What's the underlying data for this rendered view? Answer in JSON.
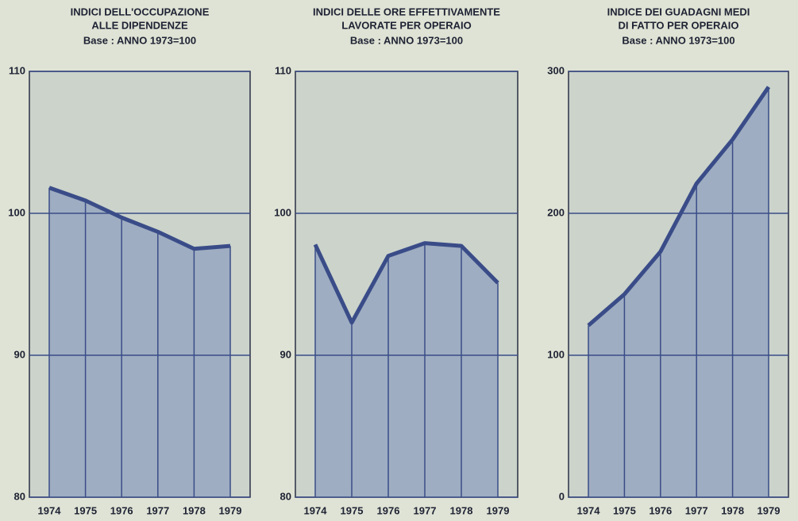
{
  "chart_data": [
    {
      "type": "area",
      "title": [
        "INDICI DELL'OCCUPAZIONE",
        "ALLE DIPENDENZE"
      ],
      "subtitle": "Base : ANNO 1973=100",
      "categories": [
        "1974",
        "1975",
        "1976",
        "1977",
        "1978",
        "1979"
      ],
      "values": [
        101.8,
        100.9,
        99.7,
        98.7,
        97.5,
        97.7
      ],
      "ylim": [
        80,
        110
      ],
      "yticks": [
        80,
        90,
        100,
        110
      ],
      "color": "#3a4c88",
      "fill": "#96a6bf",
      "grid": true
    },
    {
      "type": "area",
      "title": [
        "INDICI DELLE ORE EFFETTIVAMENTE",
        "LAVORATE PER OPERAIO"
      ],
      "subtitle": "Base : ANNO 1973=100",
      "categories": [
        "1974",
        "1975",
        "1976",
        "1977",
        "1978",
        "1979"
      ],
      "values": [
        97.8,
        92.3,
        97.0,
        97.9,
        97.7,
        95.1
      ],
      "ylim": [
        80,
        110
      ],
      "yticks": [
        80,
        90,
        100,
        110
      ],
      "color": "#3a4c88",
      "fill": "#96a6bf",
      "grid": true
    },
    {
      "type": "area",
      "title": [
        "INDICE DEI GUADAGNI MEDI",
        "DI FATTO PER OPERAIO"
      ],
      "subtitle": "Base : ANNO 1973=100",
      "categories": [
        "1974",
        "1975",
        "1976",
        "1977",
        "1978",
        "1979"
      ],
      "values": [
        121,
        143,
        173,
        221,
        252,
        289
      ],
      "ylim": [
        0,
        300
      ],
      "yticks": [
        0,
        100,
        200,
        300
      ],
      "color": "#3a4c88",
      "fill": "#96a6bf",
      "grid": true
    }
  ]
}
